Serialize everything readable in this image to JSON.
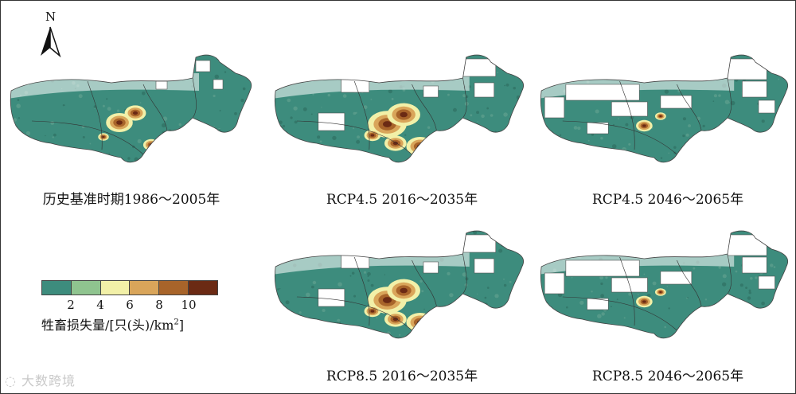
{
  "north_label": "N",
  "panels": [
    {
      "caption": "历史基准时期1986～2005年",
      "blank": "low",
      "hot": "mid"
    },
    {
      "caption": "RCP4.5 2016～2035年",
      "blank": "mid",
      "hot": "high"
    },
    {
      "caption": "RCP4.5 2046～2065年",
      "blank": "high",
      "hot": "low"
    },
    {
      "caption": "RCP8.5 2016～2035年",
      "blank": "mid",
      "hot": "high"
    },
    {
      "caption": "RCP8.5 2046～2065年",
      "blank": "high",
      "hot": "low"
    }
  ],
  "legend": {
    "title_main": "牲畜损失量/[只(头)/km",
    "title_sup": "2",
    "title_end": "]",
    "colors": [
      "#3d8c7d",
      "#8fc48f",
      "#f2f0a8",
      "#d9a55a",
      "#a8642a",
      "#6b2a14"
    ],
    "ticks": [
      "2",
      "4",
      "6",
      "8",
      "10"
    ]
  },
  "watermark": "大数跨境"
}
